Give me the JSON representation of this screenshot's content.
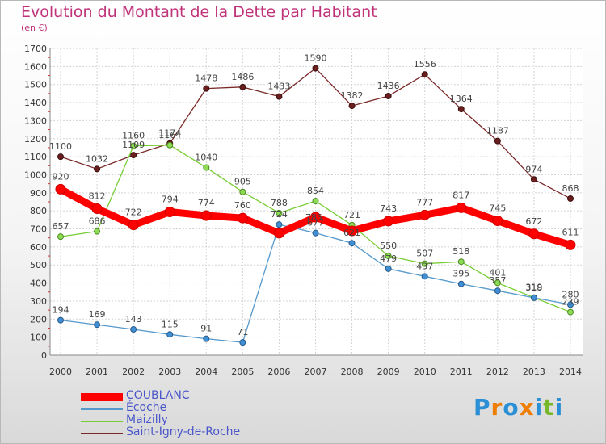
{
  "chart_data": {
    "type": "line",
    "title": "Evolution du Montant de la Dette par Habitant",
    "subtitle": "(en €)",
    "x": [
      "2000",
      "2001",
      "2002",
      "2003",
      "2004",
      "2005",
      "2006",
      "2007",
      "2008",
      "2009",
      "2010",
      "2011",
      "2012",
      "2013",
      "2014"
    ],
    "ylim": [
      0,
      1700
    ],
    "yticks": [
      0,
      100,
      200,
      300,
      400,
      500,
      600,
      700,
      800,
      900,
      1000,
      1100,
      1200,
      1300,
      1400,
      1500,
      1600,
      1700
    ],
    "grid": true,
    "legend_placement": "bottom-left",
    "series": [
      {
        "name": "COUBLANC",
        "color": "#ff0000",
        "values": [
          920,
          812,
          722,
          794,
          774,
          760,
          676,
          765,
          689,
          743,
          777,
          817,
          745,
          672,
          611
        ],
        "labels": [
          "920",
          "812",
          "722",
          "794",
          "774",
          "760",
          "",
          "",
          "",
          "743",
          "777",
          "817",
          "745",
          "672",
          "611"
        ]
      },
      {
        "name": "Écoche",
        "color": "#5599cc",
        "values": [
          194,
          169,
          143,
          115,
          91,
          71,
          724,
          677,
          621,
          479,
          437,
          395,
          357,
          318,
          280
        ],
        "labels": [
          "194",
          "169",
          "143",
          "115",
          "91",
          "71",
          "724",
          "677",
          "621",
          "479",
          "437",
          "395",
          "357",
          "318",
          "280"
        ]
      },
      {
        "name": "Maizilly",
        "color": "#77cc33",
        "values": [
          657,
          686,
          1160,
          1164,
          1040,
          905,
          788,
          854,
          721,
          550,
          507,
          518,
          401,
          319,
          239
        ],
        "labels": [
          "657",
          "686",
          "1160",
          "1164",
          "1040",
          "905",
          "788",
          "854",
          "721",
          "550",
          "507",
          "518",
          "401",
          "319",
          "239"
        ]
      },
      {
        "name": "Saint-Igny-de-Roche",
        "color": "#7a2828",
        "values": [
          1100,
          1032,
          1109,
          1174,
          1478,
          1486,
          1433,
          1590,
          1382,
          1436,
          1556,
          1364,
          1187,
          974,
          868
        ],
        "labels": [
          "1100",
          "1032",
          "1109",
          "1174",
          "1478",
          "1486",
          "1433",
          "1590",
          "1382",
          "1436",
          "1556",
          "1364",
          "1187",
          "974",
          "868"
        ]
      }
    ],
    "extra_labels": [
      "785"
    ]
  },
  "brand": {
    "text": "Proxiti",
    "letters": [
      "P",
      "r",
      "o",
      "x",
      "i",
      "t",
      "i"
    ],
    "colors": [
      "#2b8fd6",
      "#ef7d00",
      "#2b8fd6",
      "#ef7d00",
      "#2b8fd6",
      "#77b82a",
      "#2b8fd6"
    ]
  }
}
